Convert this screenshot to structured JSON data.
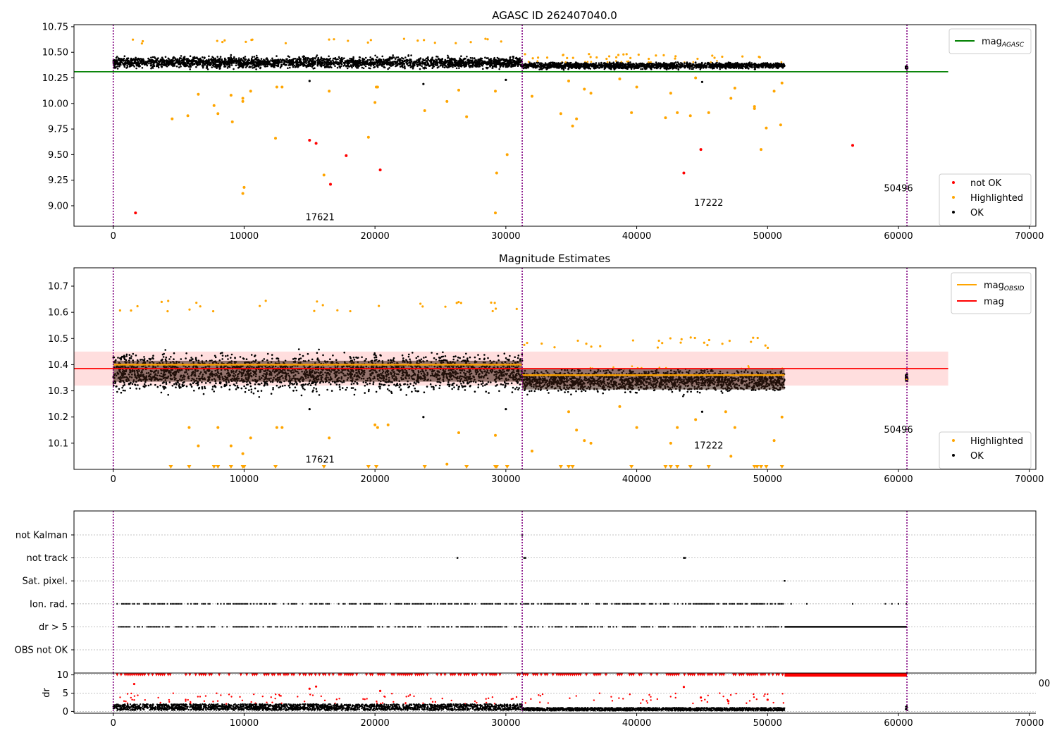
{
  "figure": {
    "panel1_title": "AGASC ID 262407040.0",
    "panel2_title": "Magnitude Estimates",
    "dr_ylabel": "dr",
    "stray_tick_fragment": "00"
  },
  "colors": {
    "ok": "#000000",
    "not_ok": "#ff0000",
    "highlighted": "#ffa500",
    "agasc_line": "#008000",
    "obsid_line": "#ffa500",
    "mag_line": "#ff0000",
    "mag_band": "#ffdede",
    "dense_band": "#3a1c10",
    "obsid_divider": "#800080",
    "grid": "#b0b0b0"
  },
  "chart_data": [
    {
      "type": "scatter",
      "title": "AGASC ID 262407040.0",
      "xlim": [
        -3000,
        70500
      ],
      "ylim": [
        8.8,
        10.77
      ],
      "xticks": [
        0,
        10000,
        20000,
        30000,
        40000,
        50000,
        60000,
        70000
      ],
      "yticks": [
        9.0,
        9.25,
        9.5,
        9.75,
        10.0,
        10.25,
        10.5,
        10.75
      ],
      "ytick_labels": [
        "9.00",
        "9.25",
        "9.50",
        "9.75",
        "10.00",
        "10.25",
        "10.50",
        "10.75"
      ],
      "obsid_dividers": [
        0,
        31250,
        60650
      ],
      "obsid_labels": [
        {
          "text": "17621",
          "x": 15800,
          "y": 8.86
        },
        {
          "text": "17222",
          "x": 45500,
          "y": 9.0
        },
        {
          "text": "50496",
          "x": 60000,
          "y": 9.14
        }
      ],
      "segments": [
        {
          "x0": 0,
          "x1": 31250,
          "center": 10.4,
          "spread": 0.1,
          "top": 10.6
        },
        {
          "x0": 31250,
          "x1": 51300,
          "center": 10.37,
          "spread": 0.06,
          "top": 10.45
        },
        {
          "x0": 60550,
          "x1": 60700,
          "center": 10.35,
          "spread": 0.03,
          "top": 10.38
        }
      ],
      "agasc_line": {
        "y": 10.31,
        "x0": -3000,
        "x1": 63800
      },
      "legend_lines": [
        {
          "name": "mag_AGASC",
          "label": "mag",
          "sub": "AGASC",
          "color": "#008000"
        }
      ],
      "legend": [
        "not OK",
        "Highlighted",
        "OK"
      ],
      "legend_placement": "lower right",
      "not_ok_points": [
        [
          1700,
          8.93
        ],
        [
          15000,
          9.64
        ],
        [
          15500,
          9.61
        ],
        [
          16600,
          9.21
        ],
        [
          17800,
          9.49
        ],
        [
          20400,
          9.35
        ],
        [
          43600,
          9.32
        ],
        [
          44900,
          9.55
        ],
        [
          56500,
          9.59
        ]
      ],
      "highlighted_points": [
        [
          4500,
          9.85
        ],
        [
          5700,
          9.88
        ],
        [
          6500,
          10.09
        ],
        [
          7700,
          9.98
        ],
        [
          8000,
          9.9
        ],
        [
          9000,
          10.08
        ],
        [
          9100,
          9.82
        ],
        [
          9900,
          10.05
        ],
        [
          9900,
          10.02
        ],
        [
          10000,
          9.18
        ],
        [
          9900,
          9.12
        ],
        [
          10500,
          10.12
        ],
        [
          12400,
          9.66
        ],
        [
          12500,
          10.16
        ],
        [
          12900,
          10.16
        ],
        [
          16100,
          9.3
        ],
        [
          16500,
          10.12
        ],
        [
          19500,
          9.67
        ],
        [
          20000,
          10.01
        ],
        [
          20100,
          10.16
        ],
        [
          20200,
          10.16
        ],
        [
          23800,
          9.93
        ],
        [
          25500,
          10.02
        ],
        [
          26400,
          10.13
        ],
        [
          27000,
          9.87
        ],
        [
          29200,
          8.93
        ],
        [
          29300,
          9.32
        ],
        [
          29200,
          10.12
        ],
        [
          30100,
          9.5
        ],
        [
          32000,
          10.07
        ],
        [
          34200,
          9.9
        ],
        [
          34800,
          10.22
        ],
        [
          35100,
          9.78
        ],
        [
          35400,
          9.85
        ],
        [
          36000,
          10.14
        ],
        [
          36500,
          10.1
        ],
        [
          38700,
          10.24
        ],
        [
          39600,
          9.91
        ],
        [
          40000,
          10.16
        ],
        [
          42200,
          9.86
        ],
        [
          42600,
          10.1
        ],
        [
          43100,
          9.91
        ],
        [
          44100,
          9.88
        ],
        [
          44500,
          10.25
        ],
        [
          45500,
          9.91
        ],
        [
          47200,
          10.05
        ],
        [
          47500,
          10.15
        ],
        [
          49000,
          9.97
        ],
        [
          49000,
          9.95
        ],
        [
          49500,
          9.55
        ],
        [
          49900,
          9.76
        ],
        [
          50500,
          10.12
        ],
        [
          51000,
          9.79
        ],
        [
          51100,
          10.2
        ]
      ],
      "black_outliers": [
        [
          15000,
          10.22
        ],
        [
          23700,
          10.19
        ],
        [
          30000,
          10.23
        ],
        [
          45000,
          10.21
        ]
      ]
    },
    {
      "type": "scatter",
      "title": "Magnitude Estimates",
      "xlim": [
        -3000,
        70500
      ],
      "ylim": [
        10.0,
        10.77
      ],
      "xticks": [
        0,
        10000,
        20000,
        30000,
        40000,
        50000,
        60000,
        70000
      ],
      "yticks": [
        10.1,
        10.2,
        10.3,
        10.4,
        10.5,
        10.6,
        10.7
      ],
      "ytick_labels": [
        "10.1",
        "10.2",
        "10.3",
        "10.4",
        "10.5",
        "10.6",
        "10.7"
      ],
      "obsid_dividers": [
        0,
        31250,
        60650
      ],
      "obsid_labels": [
        {
          "text": "17621",
          "x": 15800,
          "y": 10.025
        },
        {
          "text": "17222",
          "x": 45500,
          "y": 10.08
        },
        {
          "text": "50496",
          "x": 60000,
          "y": 10.14
        }
      ],
      "segments": [
        {
          "x0": 0,
          "x1": 31250,
          "center": 10.37,
          "spread": 0.13,
          "top": 10.62
        },
        {
          "x0": 31250,
          "x1": 51300,
          "center": 10.34,
          "spread": 0.08,
          "top": 10.48
        },
        {
          "x0": 60550,
          "x1": 60700,
          "center": 10.35,
          "spread": 0.03,
          "top": 10.38
        }
      ],
      "mag_band": {
        "y0": 10.32,
        "y1": 10.45,
        "x0": -3000,
        "x1": 63800
      },
      "mag_line": {
        "y": 10.385,
        "x0": -3000,
        "x1": 63800
      },
      "obsid_lines": [
        {
          "y": 10.4,
          "x0": 0,
          "x1": 31250
        },
        {
          "y": 10.36,
          "x0": 31250,
          "x1": 51300
        },
        {
          "y": 10.345,
          "x0": 60550,
          "x1": 60700
        }
      ],
      "legend_lines": [
        {
          "name": "mag_OBSID",
          "label": "mag",
          "sub": "OBSID",
          "color": "#ffa500"
        },
        {
          "name": "mag",
          "label": "mag",
          "sub": "",
          "color": "#ff0000"
        }
      ],
      "legend": [
        "Highlighted",
        "OK"
      ],
      "legend_placement": "lower right",
      "highlighted_points": [
        [
          5800,
          10.16
        ],
        [
          6500,
          10.09
        ],
        [
          8000,
          10.16
        ],
        [
          9000,
          10.09
        ],
        [
          9900,
          10.06
        ],
        [
          10500,
          10.12
        ],
        [
          12500,
          10.16
        ],
        [
          12900,
          10.16
        ],
        [
          16500,
          10.12
        ],
        [
          20000,
          10.17
        ],
        [
          20200,
          10.16
        ],
        [
          21000,
          10.17
        ],
        [
          25500,
          10.02
        ],
        [
          26400,
          10.14
        ],
        [
          29200,
          10.13
        ],
        [
          32000,
          10.07
        ],
        [
          34800,
          10.22
        ],
        [
          35400,
          10.15
        ],
        [
          36000,
          10.11
        ],
        [
          36500,
          10.1
        ],
        [
          38700,
          10.24
        ],
        [
          40000,
          10.16
        ],
        [
          42600,
          10.1
        ],
        [
          43100,
          10.16
        ],
        [
          44500,
          10.19
        ],
        [
          46800,
          10.22
        ],
        [
          47200,
          10.05
        ],
        [
          47500,
          10.16
        ],
        [
          50500,
          10.11
        ],
        [
          51100,
          10.2
        ]
      ],
      "clipped_markers_x": [
        4400,
        5800,
        7700,
        8000,
        9000,
        9900,
        10000,
        12400,
        16100,
        19500,
        20100,
        23800,
        27000,
        29200,
        29300,
        30100,
        34200,
        34800,
        35100,
        39600,
        42200,
        42600,
        43100,
        44100,
        45500,
        49000,
        49200,
        49500,
        49900,
        51100
      ],
      "black_outliers": [
        [
          15000,
          10.23
        ],
        [
          23700,
          10.2
        ],
        [
          30000,
          10.23
        ],
        [
          45000,
          10.22
        ]
      ]
    },
    {
      "type": "scatter",
      "title": "",
      "xlim": [
        -3000,
        70500
      ],
      "category_ylabels": [
        "not Kalman",
        "not track",
        "Sat. pixel.",
        "Ion. rad.",
        "dr > 5",
        "OBS not OK"
      ],
      "obsid_dividers": [
        0,
        31250,
        60650
      ],
      "category_points": {
        "not Kalman": [
          31250
        ],
        "not track": [
          26300,
          31400,
          31500,
          43600,
          43700
        ],
        "Sat. pixel.": [
          51300
        ],
        "Ion. rad.": {
          "range": [
            300,
            51300
          ],
          "extra": [
            51800,
            53000,
            56500,
            59000,
            59500,
            60000,
            60600
          ]
        },
        "dr > 5": {
          "range": [
            300,
            51300
          ],
          "dense": [
            51300,
            60650
          ]
        }
      },
      "dr_panel": {
        "ylabel": "dr",
        "ylim": [
          -0.5,
          10.5
        ],
        "yticks": [
          0,
          5,
          10
        ],
        "ytick_labels": [
          "0",
          "5",
          "10"
        ],
        "clipped_level": 10,
        "red_points": [
          [
            1600,
            7.5
          ],
          [
            15000,
            6.2
          ],
          [
            15500,
            6.8
          ],
          [
            20400,
            5.6
          ],
          [
            43600,
            6.7
          ],
          [
            44900,
            3.8
          ],
          [
            47000,
            2.8
          ],
          [
            50000,
            3.2
          ]
        ],
        "ok_ranges": [
          [
            0,
            31250,
            0.3,
            2.0
          ],
          [
            31250,
            51300,
            0.2,
            1.0
          ],
          [
            60550,
            60700,
            0.3,
            1.5
          ]
        ]
      },
      "xticks": [
        0,
        10000,
        20000,
        30000,
        40000,
        50000,
        60000,
        70000
      ]
    }
  ]
}
